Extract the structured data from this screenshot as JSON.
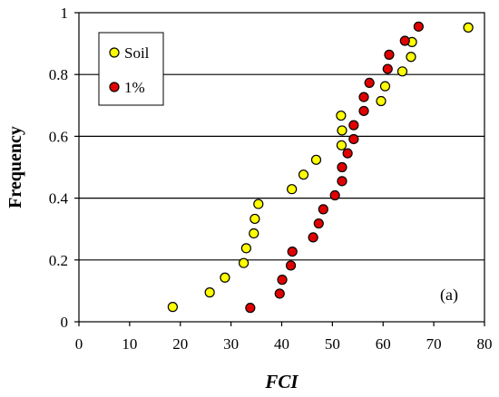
{
  "chart_data": {
    "type": "scatter",
    "xlabel": "FCI",
    "ylabel": "Frequency",
    "xlim": [
      0,
      80
    ],
    "ylim": [
      0,
      1
    ],
    "xticks": [
      "0",
      "10",
      "20",
      "30",
      "40",
      "50",
      "60",
      "70",
      "80"
    ],
    "yticks": [
      "0",
      "0.2",
      "0.4",
      "0.6",
      "0.8",
      "1"
    ],
    "grid": "horizontal",
    "legend_position": "top-left",
    "annotation": "(a)",
    "series": [
      {
        "name": "Soil",
        "color": "#FFFF00",
        "points": [
          [
            18.5,
            0.048
          ],
          [
            25.8,
            0.095
          ],
          [
            28.8,
            0.143
          ],
          [
            32.5,
            0.19
          ],
          [
            33.0,
            0.238
          ],
          [
            34.5,
            0.286
          ],
          [
            34.7,
            0.333
          ],
          [
            35.4,
            0.381
          ],
          [
            42.0,
            0.429
          ],
          [
            44.3,
            0.476
          ],
          [
            46.8,
            0.524
          ],
          [
            51.8,
            0.571
          ],
          [
            51.9,
            0.619
          ],
          [
            51.7,
            0.667
          ],
          [
            59.6,
            0.714
          ],
          [
            60.4,
            0.762
          ],
          [
            63.8,
            0.81
          ],
          [
            65.5,
            0.857
          ],
          [
            65.7,
            0.905
          ],
          [
            76.8,
            0.952
          ]
        ]
      },
      {
        "name": "1%",
        "color": "#E00000",
        "points": [
          [
            33.8,
            0.045
          ],
          [
            39.6,
            0.091
          ],
          [
            40.1,
            0.136
          ],
          [
            41.8,
            0.182
          ],
          [
            42.1,
            0.227
          ],
          [
            46.2,
            0.273
          ],
          [
            47.3,
            0.318
          ],
          [
            48.2,
            0.364
          ],
          [
            50.5,
            0.409
          ],
          [
            51.9,
            0.455
          ],
          [
            51.9,
            0.5
          ],
          [
            53.0,
            0.545
          ],
          [
            54.2,
            0.591
          ],
          [
            54.2,
            0.636
          ],
          [
            56.2,
            0.682
          ],
          [
            56.2,
            0.727
          ],
          [
            57.3,
            0.773
          ],
          [
            60.9,
            0.818
          ],
          [
            61.2,
            0.864
          ],
          [
            64.3,
            0.909
          ],
          [
            67.0,
            0.955
          ]
        ]
      }
    ]
  }
}
